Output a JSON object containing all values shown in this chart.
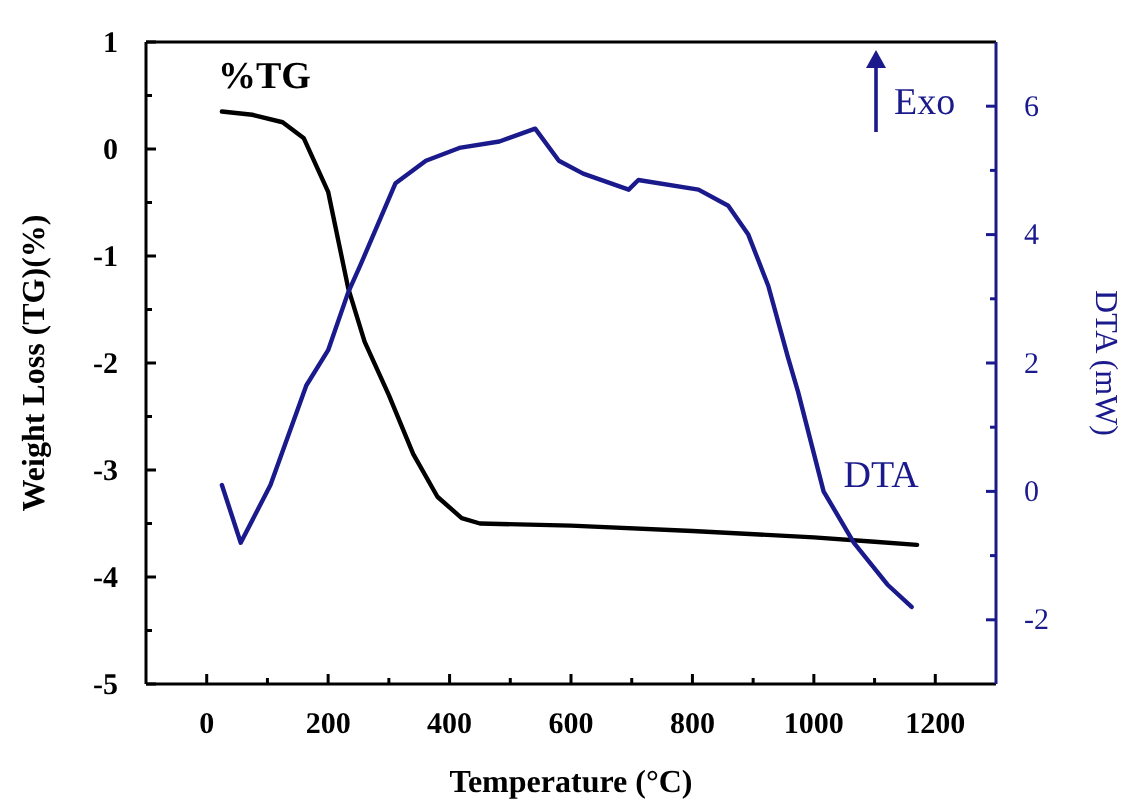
{
  "chart_data": {
    "type": "line",
    "xlabel": "Temperature (°C)",
    "ylabel": "Weight Loss (TG)(%)",
    "y2label": "DTA (mW)",
    "annotations": [
      "Exo"
    ],
    "xlim": [
      -100,
      1300
    ],
    "xticks": [
      0,
      {
        "value": 100,
        "label": null
      },
      200,
      {
        "value": 300,
        "label": null
      },
      400,
      {
        "value": 500,
        "label": null
      },
      600,
      {
        "value": 700,
        "label": null
      },
      800,
      {
        "value": 900,
        "label": null
      },
      1000,
      {
        "value": 1100,
        "label": null
      },
      1200
    ],
    "ylim": [
      -5,
      1
    ],
    "yticks": [
      -5,
      {
        "value": -4.5,
        "label": null
      },
      -4,
      {
        "value": -3.5,
        "label": null
      },
      -3,
      {
        "value": -2.5,
        "label": null
      },
      -2,
      {
        "value": -1.5,
        "label": null
      },
      -1,
      {
        "value": -0.5,
        "label": null
      },
      0,
      {
        "value": 0.5,
        "label": null
      },
      1
    ],
    "y2lim": [
      -3,
      7
    ],
    "y2ticks": [
      -2,
      {
        "value": -1,
        "label": null
      },
      0,
      {
        "value": 1,
        "label": null
      },
      2,
      {
        "value": 3,
        "label": null
      },
      4,
      {
        "value": 5,
        "label": null
      },
      6
    ],
    "legend": false,
    "grid": false,
    "marker": "none",
    "line_style": "solid",
    "series": [
      {
        "name": "%TG",
        "color": "#000000",
        "x": [
          25,
          75,
          125,
          160,
          200,
          233,
          260,
          300,
          340,
          380,
          420,
          450,
          600,
          800,
          1000,
          1100,
          1170
        ],
        "values": [
          0.35,
          0.32,
          0.25,
          0.1,
          -0.4,
          -1.3,
          -1.8,
          -2.3,
          -2.85,
          -3.25,
          -3.45,
          -3.5,
          -3.52,
          -3.57,
          -3.63,
          -3.67,
          -3.7
        ]
      },
      {
        "name": "DTA",
        "color": "#1a1a8c",
        "axis": "y2",
        "x": [
          25,
          56,
          105,
          164,
          200,
          233,
          252,
          311,
          361,
          416,
          482,
          541,
          580,
          620,
          695,
          711,
          810,
          859,
          892,
          925,
          957,
          974,
          1016,
          1066,
          1121,
          1161
        ],
        "values": [
          0.1,
          -0.8,
          0.1,
          1.65,
          2.2,
          3.1,
          3.5,
          4.8,
          5.15,
          5.35,
          5.45,
          5.65,
          5.15,
          4.95,
          4.7,
          4.85,
          4.7,
          4.45,
          4.0,
          3.2,
          2.1,
          1.55,
          0,
          -0.8,
          -1.45,
          -1.8
        ]
      }
    ]
  }
}
